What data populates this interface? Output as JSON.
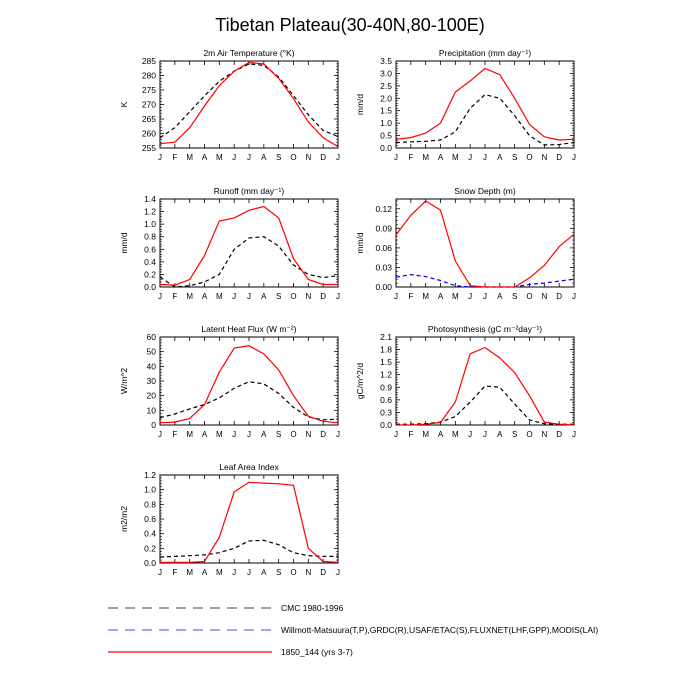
{
  "figure_title": "Tibetan Plateau(30-40N,80-100E)",
  "months": [
    "J",
    "F",
    "M",
    "A",
    "M",
    "J",
    "J",
    "A",
    "S",
    "O",
    "N",
    "D",
    "J"
  ],
  "legend": [
    {
      "label": "CMC 1980-1996",
      "color": "#000000",
      "style": "dashed"
    },
    {
      "label": "Willmott-Matsuura(T,P),GRDC(R),USAF/ETAC(S),FLUXNET(LHF,GPP),MODIS(LAI)",
      "color": "#0000ff",
      "style": "dashed"
    },
    {
      "label": "1850_144 (yrs 3-7)",
      "color": "#ff0000",
      "style": "solid"
    }
  ],
  "colors": {
    "model": "#ff0000",
    "cmc": "#000000",
    "obs": "#0000ff"
  },
  "chart_data": [
    {
      "type": "line",
      "title": "2m Air Temperature (°K)",
      "ylabel": "K",
      "ylim": [
        255,
        285
      ],
      "yticks": [
        255,
        260,
        265,
        270,
        275,
        280,
        285
      ],
      "categories": [
        "J",
        "F",
        "M",
        "A",
        "M",
        "J",
        "J",
        "A",
        "S",
        "O",
        "N",
        "D",
        "J"
      ],
      "series": [
        {
          "name": "CMC 1980-1996",
          "style": "dashed",
          "color": "#000000",
          "values": [
            258.5,
            262,
            267.5,
            273,
            278,
            281.5,
            284,
            283.5,
            279.5,
            273,
            266.5,
            261,
            259
          ]
        },
        {
          "name": "1850_144 (yrs 3-7)",
          "style": "solid",
          "color": "#ff0000",
          "values": [
            256.5,
            257,
            262,
            269.5,
            276.5,
            281.5,
            284.5,
            284,
            279,
            272,
            264,
            258.5,
            255.5
          ]
        }
      ]
    },
    {
      "type": "line",
      "title": "Precipitation (mm day⁻¹)",
      "ylabel": "mm/d",
      "ylim": [
        0,
        3.5
      ],
      "yticks": [
        0.0,
        0.5,
        1.0,
        1.5,
        2.0,
        2.5,
        3.0,
        3.5
      ],
      "categories": [
        "J",
        "F",
        "M",
        "A",
        "M",
        "J",
        "J",
        "A",
        "S",
        "O",
        "N",
        "D",
        "J"
      ],
      "series": [
        {
          "name": "CMC 1980-1996",
          "style": "dashed",
          "color": "#000000",
          "values": [
            0.22,
            0.25,
            0.27,
            0.32,
            0.65,
            1.6,
            2.15,
            2.0,
            1.3,
            0.5,
            0.12,
            0.14,
            0.22
          ]
        },
        {
          "name": "1850_144 (yrs 3-7)",
          "style": "solid",
          "color": "#ff0000",
          "values": [
            0.35,
            0.42,
            0.6,
            1.0,
            2.25,
            2.7,
            3.2,
            2.95,
            2.0,
            0.95,
            0.45,
            0.32,
            0.35
          ]
        }
      ]
    },
    {
      "type": "line",
      "title": "Runoff (mm day⁻¹)",
      "ylabel": "mm/d",
      "ylim": [
        0,
        1.4
      ],
      "yticks": [
        0.0,
        0.2,
        0.4,
        0.6,
        0.8,
        1.0,
        1.2,
        1.4
      ],
      "categories": [
        "J",
        "F",
        "M",
        "A",
        "M",
        "J",
        "J",
        "A",
        "S",
        "O",
        "N",
        "D",
        "J"
      ],
      "series": [
        {
          "name": "CMC 1980-1996",
          "style": "dashed",
          "color": "#000000",
          "values": [
            0.16,
            0.0,
            0.02,
            0.08,
            0.2,
            0.6,
            0.78,
            0.8,
            0.65,
            0.35,
            0.2,
            0.15,
            0.18
          ]
        },
        {
          "name": "1850_144 (yrs 3-7)",
          "style": "solid",
          "color": "#ff0000",
          "values": [
            0.04,
            0.03,
            0.12,
            0.5,
            1.05,
            1.1,
            1.22,
            1.28,
            1.1,
            0.45,
            0.12,
            0.04,
            0.04
          ]
        }
      ]
    },
    {
      "type": "line",
      "title": "Snow Depth (m)",
      "ylabel": "mm/d",
      "ylim": [
        0,
        0.135
      ],
      "yticks": [
        0.0,
        0.03,
        0.06,
        0.09,
        0.12
      ],
      "categories": [
        "J",
        "F",
        "M",
        "A",
        "M",
        "J",
        "J",
        "A",
        "S",
        "O",
        "N",
        "D",
        "J"
      ],
      "series": [
        {
          "name": "Willmott-Matsuura(T,P),GRDC(R),USAF/ETAC(S),FLUXNET(LHF,GPP),MODIS(LAI)",
          "style": "dashed",
          "color": "#0000ff",
          "values": [
            0.015,
            0.019,
            0.016,
            0.01,
            0.002,
            0.0,
            0.0,
            0.0,
            0.0,
            0.004,
            0.006,
            0.009,
            0.012
          ]
        },
        {
          "name": "1850_144 (yrs 3-7)",
          "style": "solid",
          "color": "#ff0000",
          "values": [
            0.08,
            0.11,
            0.132,
            0.118,
            0.04,
            0.002,
            0.0,
            0.0,
            0.0,
            0.014,
            0.033,
            0.062,
            0.081
          ]
        }
      ]
    },
    {
      "type": "line",
      "title": "Latent Heat Flux (W m⁻²)",
      "ylabel": "W/m^2",
      "ylim": [
        0,
        60
      ],
      "yticks": [
        0,
        10,
        20,
        30,
        40,
        50,
        60
      ],
      "categories": [
        "J",
        "F",
        "M",
        "A",
        "M",
        "J",
        "J",
        "A",
        "S",
        "O",
        "N",
        "D",
        "J"
      ],
      "series": [
        {
          "name": "CMC 1980-1996",
          "style": "dashed",
          "color": "#000000",
          "values": [
            5,
            7.5,
            11,
            14,
            18.5,
            25,
            29.5,
            28,
            21.5,
            12,
            5.5,
            3.5,
            4
          ]
        },
        {
          "name": "1850_144 (yrs 3-7)",
          "style": "solid",
          "color": "#ff0000",
          "values": [
            1.5,
            2,
            4.5,
            14,
            36,
            52.5,
            54,
            48.5,
            37.5,
            20,
            6,
            2.5,
            1.5
          ]
        }
      ]
    },
    {
      "type": "line",
      "title": "Photosynthesis (gC m⁻²day⁻¹)",
      "ylabel": "gC/m^2/d",
      "ylim": [
        0,
        2.1
      ],
      "yticks": [
        0.0,
        0.3,
        0.6,
        0.9,
        1.2,
        1.5,
        1.8,
        2.1
      ],
      "categories": [
        "J",
        "F",
        "M",
        "A",
        "M",
        "J",
        "J",
        "A",
        "S",
        "O",
        "N",
        "D",
        "J"
      ],
      "series": [
        {
          "name": "CMC 1980-1996",
          "style": "dashed",
          "color": "#000000",
          "values": [
            0.02,
            0.02,
            0.03,
            0.07,
            0.2,
            0.55,
            0.93,
            0.9,
            0.5,
            0.12,
            0.03,
            0.02,
            0.02
          ]
        },
        {
          "name": "1850_144 (yrs 3-7)",
          "style": "solid",
          "color": "#ff0000",
          "values": [
            0.0,
            0.0,
            0.02,
            0.06,
            0.55,
            1.7,
            1.85,
            1.6,
            1.25,
            0.7,
            0.07,
            0.02,
            0.0
          ]
        }
      ]
    },
    {
      "type": "line",
      "title": "Leaf Area Index",
      "ylabel": "m2/m2",
      "ylim": [
        0,
        1.2
      ],
      "yticks": [
        0.0,
        0.2,
        0.4,
        0.6,
        0.8,
        1.0,
        1.2
      ],
      "categories": [
        "J",
        "F",
        "M",
        "A",
        "M",
        "J",
        "J",
        "A",
        "S",
        "O",
        "N",
        "D",
        "J"
      ],
      "series": [
        {
          "name": "CMC 1980-1996",
          "style": "dashed",
          "color": "#000000",
          "values": [
            0.08,
            0.09,
            0.1,
            0.11,
            0.14,
            0.2,
            0.3,
            0.31,
            0.25,
            0.14,
            0.1,
            0.09,
            0.09
          ]
        },
        {
          "name": "1850_144 (yrs 3-7)",
          "style": "solid",
          "color": "#ff0000",
          "values": [
            0.01,
            0.01,
            0.01,
            0.02,
            0.35,
            0.97,
            1.1,
            1.09,
            1.08,
            1.06,
            0.2,
            0.02,
            0.01
          ]
        }
      ]
    }
  ]
}
